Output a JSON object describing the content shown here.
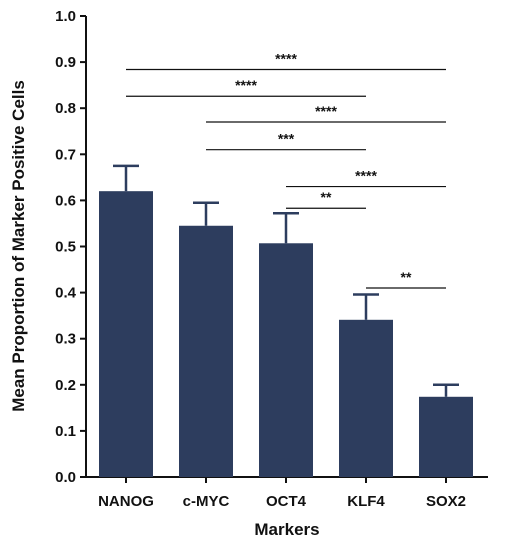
{
  "chart_data": {
    "type": "bar",
    "title": "",
    "xlabel": "Markers",
    "ylabel": "Mean Proportion of Marker Positive Cells",
    "ylim": [
      0,
      1.0
    ],
    "yticks": [
      "0.0",
      "0.1",
      "0.2",
      "0.3",
      "0.4",
      "0.5",
      "0.6",
      "0.7",
      "0.8",
      "0.9",
      "1.0"
    ],
    "categories": [
      "NANOG",
      "c-MYC",
      "OCT4",
      "KLF4",
      "SOX2"
    ],
    "values": [
      0.62,
      0.545,
      0.507,
      0.341,
      0.174
    ],
    "error_upper": [
      0.675,
      0.595,
      0.572,
      0.396,
      0.2
    ],
    "bar_color": "#2d3d5e",
    "grid": false,
    "significance": [
      {
        "from": 0,
        "to": 4,
        "y": 0.884,
        "label": "****"
      },
      {
        "from": 0,
        "to": 3,
        "y": 0.826,
        "label": "****"
      },
      {
        "from": 1,
        "to": 4,
        "y": 0.77,
        "label": "****"
      },
      {
        "from": 1,
        "to": 3,
        "y": 0.71,
        "label": "***"
      },
      {
        "from": 2,
        "to": 4,
        "y": 0.63,
        "label": "****"
      },
      {
        "from": 2,
        "to": 3,
        "y": 0.583,
        "label": "**"
      },
      {
        "from": 3,
        "to": 4,
        "y": 0.41,
        "label": "**"
      }
    ]
  }
}
